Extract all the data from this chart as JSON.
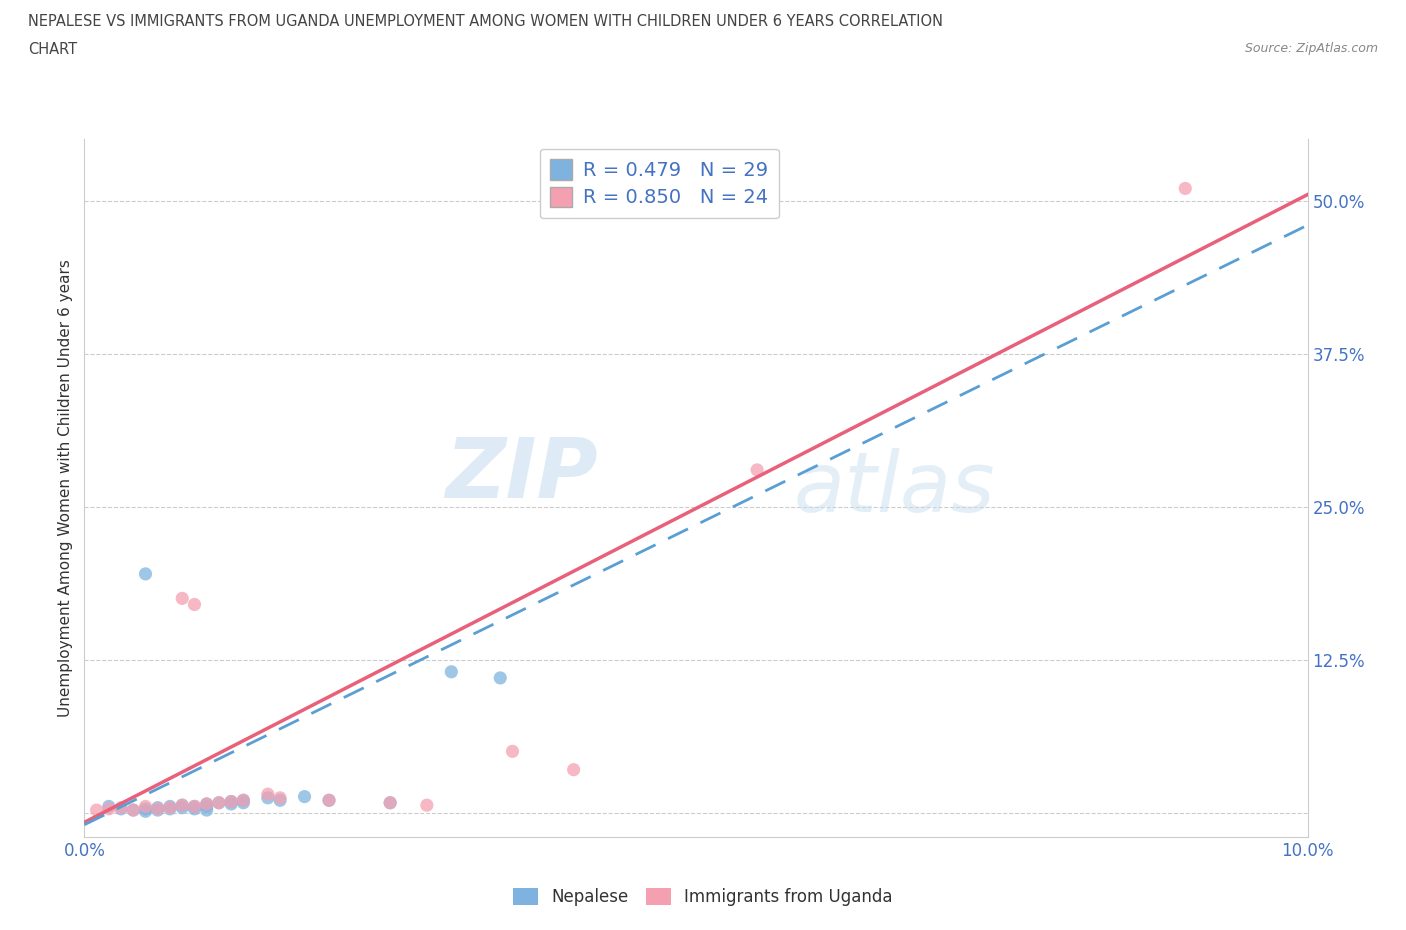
{
  "title_line1": "NEPALESE VS IMMIGRANTS FROM UGANDA UNEMPLOYMENT AMONG WOMEN WITH CHILDREN UNDER 6 YEARS CORRELATION",
  "title_line2": "CHART",
  "source": "Source: ZipAtlas.com",
  "ylabel": "Unemployment Among Women with Children Under 6 years",
  "xlim": [
    0.0,
    0.1
  ],
  "ylim": [
    -0.02,
    0.55
  ],
  "xticks": [
    0.0,
    0.02,
    0.04,
    0.06,
    0.08,
    0.1
  ],
  "yticks": [
    0.0,
    0.125,
    0.25,
    0.375,
    0.5
  ],
  "xtick_labels": [
    "0.0%",
    "",
    "",
    "",
    "",
    "10.0%"
  ],
  "ytick_labels": [
    "",
    "12.5%",
    "25.0%",
    "37.5%",
    "50.0%"
  ],
  "nepalese_color": "#7eb3e0",
  "nepalese_line_color": "#5a9fd4",
  "uganda_color": "#f4a0b0",
  "uganda_line_color": "#e8607a",
  "nepalese_R": 0.479,
  "nepalese_N": 29,
  "uganda_R": 0.85,
  "uganda_N": 24,
  "nepalese_scatter": [
    [
      0.002,
      0.005
    ],
    [
      0.003,
      0.003
    ],
    [
      0.004,
      0.002
    ],
    [
      0.005,
      0.001
    ],
    [
      0.005,
      0.003
    ],
    [
      0.006,
      0.004
    ],
    [
      0.006,
      0.002
    ],
    [
      0.007,
      0.005
    ],
    [
      0.007,
      0.003
    ],
    [
      0.008,
      0.006
    ],
    [
      0.008,
      0.004
    ],
    [
      0.009,
      0.005
    ],
    [
      0.009,
      0.003
    ],
    [
      0.01,
      0.007
    ],
    [
      0.01,
      0.005
    ],
    [
      0.01,
      0.002
    ],
    [
      0.011,
      0.008
    ],
    [
      0.012,
      0.009
    ],
    [
      0.012,
      0.007
    ],
    [
      0.013,
      0.01
    ],
    [
      0.013,
      0.008
    ],
    [
      0.015,
      0.012
    ],
    [
      0.016,
      0.01
    ],
    [
      0.018,
      0.013
    ],
    [
      0.02,
      0.01
    ],
    [
      0.025,
      0.008
    ],
    [
      0.03,
      0.115
    ],
    [
      0.034,
      0.11
    ],
    [
      0.005,
      0.195
    ]
  ],
  "uganda_scatter": [
    [
      0.001,
      0.002
    ],
    [
      0.002,
      0.003
    ],
    [
      0.003,
      0.004
    ],
    [
      0.004,
      0.002
    ],
    [
      0.005,
      0.005
    ],
    [
      0.006,
      0.003
    ],
    [
      0.007,
      0.004
    ],
    [
      0.008,
      0.006
    ],
    [
      0.009,
      0.005
    ],
    [
      0.01,
      0.007
    ],
    [
      0.011,
      0.008
    ],
    [
      0.012,
      0.009
    ],
    [
      0.013,
      0.01
    ],
    [
      0.015,
      0.015
    ],
    [
      0.016,
      0.012
    ],
    [
      0.008,
      0.175
    ],
    [
      0.009,
      0.17
    ],
    [
      0.02,
      0.01
    ],
    [
      0.025,
      0.008
    ],
    [
      0.028,
      0.006
    ],
    [
      0.035,
      0.05
    ],
    [
      0.04,
      0.035
    ],
    [
      0.055,
      0.28
    ],
    [
      0.09,
      0.51
    ]
  ],
  "nepalese_line": [
    [
      0.0,
      -0.01
    ],
    [
      0.1,
      0.48
    ]
  ],
  "uganda_line": [
    [
      0.0,
      -0.008
    ],
    [
      0.1,
      0.505
    ]
  ],
  "background_color": "#ffffff",
  "grid_color": "#cccccc",
  "watermark_zip": "ZIP",
  "watermark_atlas": "atlas",
  "legend_label1": "R = 0.479   N = 29",
  "legend_label2": "R = 0.850   N = 24",
  "bottom_legend_nepalese": "Nepalese",
  "bottom_legend_uganda": "Immigrants from Uganda",
  "title_color": "#444444",
  "axis_label_color": "#333333",
  "tick_color": "#4472c4",
  "marker_size": 90
}
